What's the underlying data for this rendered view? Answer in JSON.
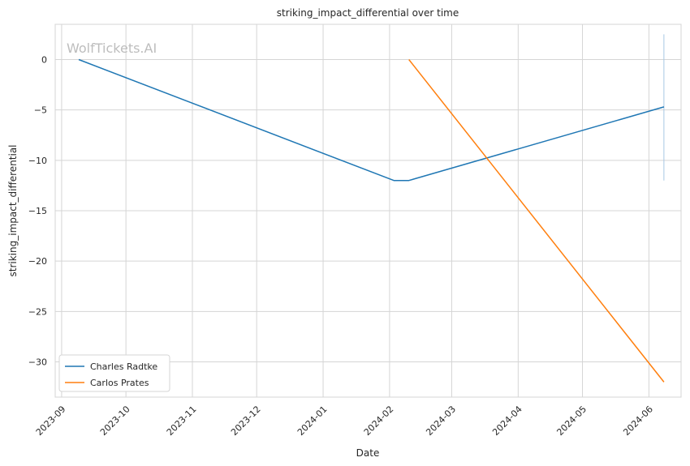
{
  "chart_data": {
    "type": "line",
    "title": "striking_impact_differential over time",
    "xlabel": "Date",
    "ylabel": "striking_impact_differential",
    "watermark": "WolfTickets.AI",
    "x_ticks": [
      "2023-09",
      "2023-10",
      "2023-11",
      "2023-12",
      "2024-01",
      "2024-02",
      "2024-03",
      "2024-04",
      "2024-05",
      "2024-06"
    ],
    "y_ticks": [
      0,
      -5,
      -10,
      -15,
      -20,
      -25,
      -30
    ],
    "ylim": [
      -33.5,
      3.5
    ],
    "xlim": [
      "2023-08-29",
      "2024-06-16"
    ],
    "grid": true,
    "legend_position": "lower-left",
    "series": [
      {
        "name": "Charles Radtke",
        "color": "#1f77b4",
        "points": [
          {
            "x": "2023-09-09",
            "y": 0
          },
          {
            "x": "2024-02-03",
            "y": -12
          },
          {
            "x": "2024-02-10",
            "y": -12
          },
          {
            "x": "2024-06-08",
            "y": -4.7
          }
        ]
      },
      {
        "name": "Carlos Prates",
        "color": "#ff7f0e",
        "points": [
          {
            "x": "2024-02-10",
            "y": 0
          },
          {
            "x": "2024-06-08",
            "y": -32
          }
        ]
      }
    ],
    "error_band": {
      "x": "2024-06-08",
      "y_low": -12,
      "y_high": 2.5,
      "color": "#a6c8e4"
    }
  }
}
